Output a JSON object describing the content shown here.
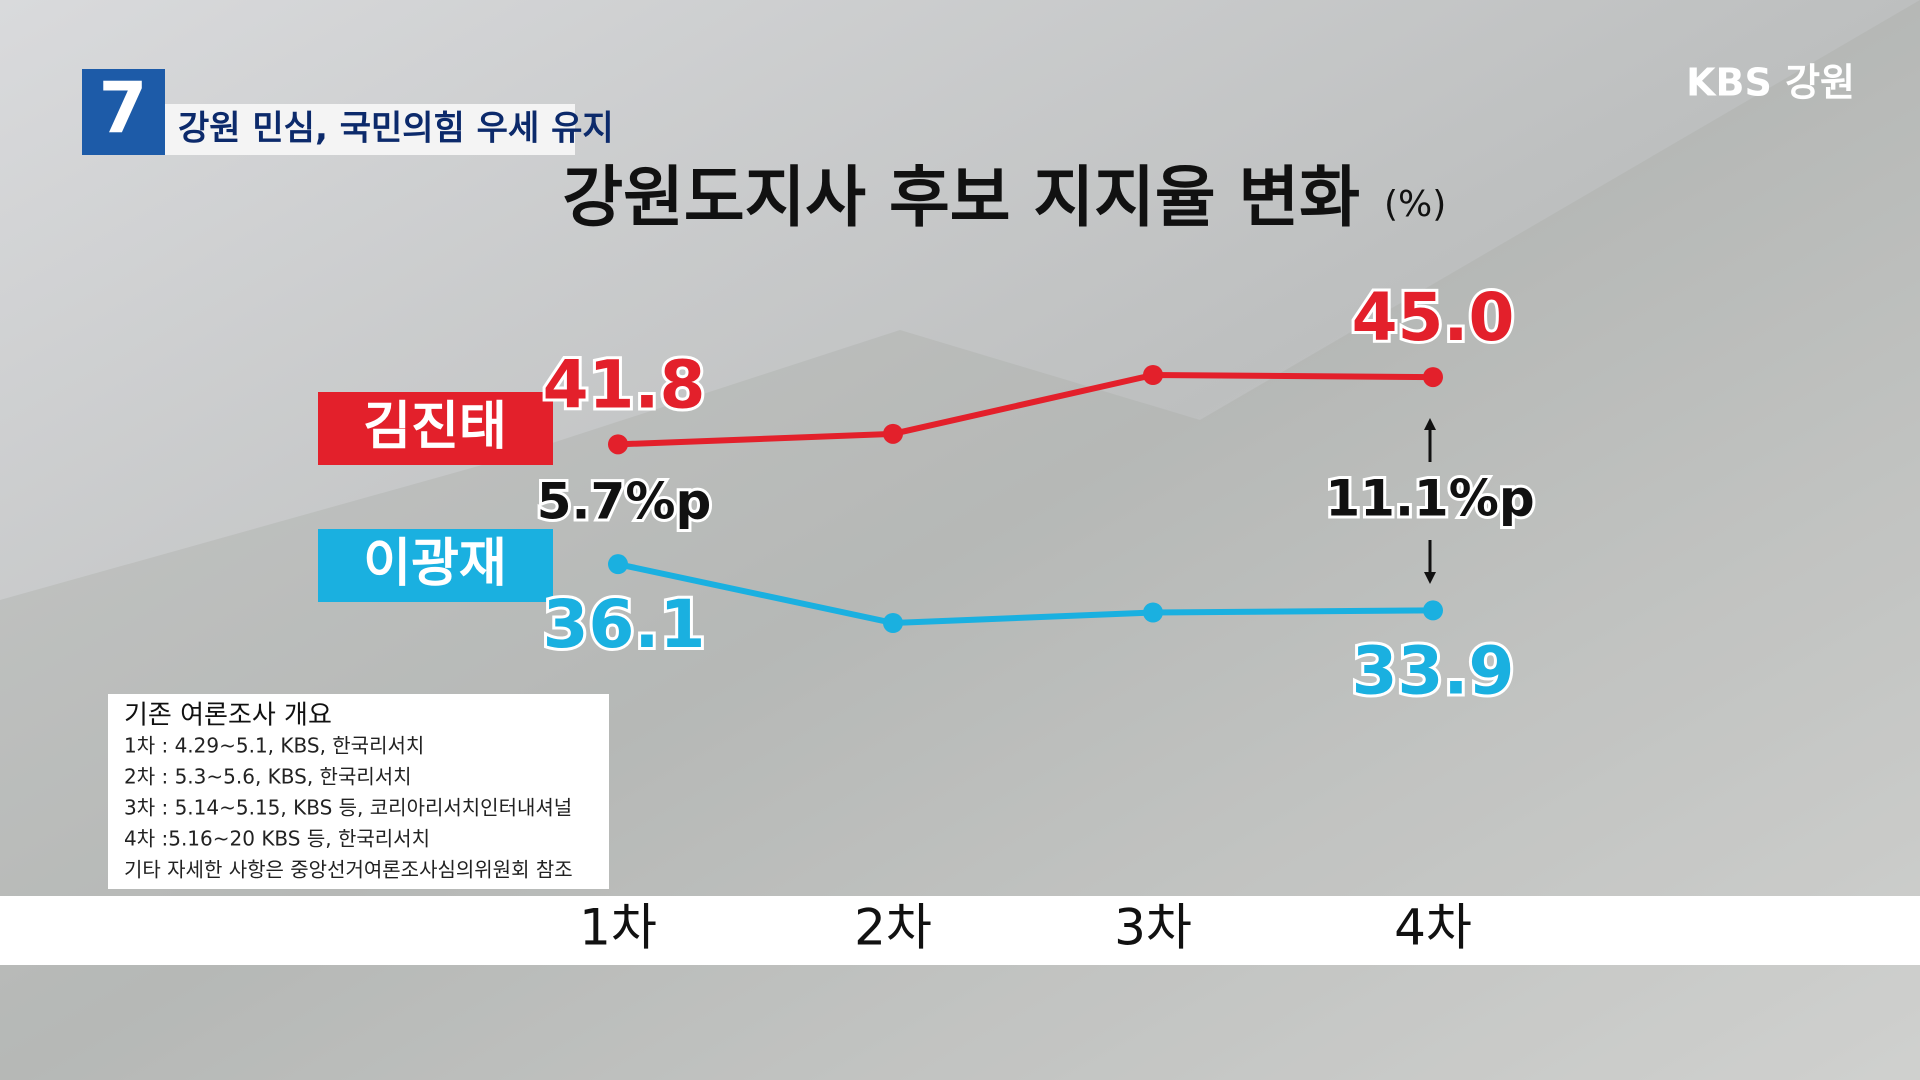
{
  "chart_data": {
    "type": "line",
    "badge": "7",
    "headline": "강원 민심, 국민의힘 우세 유지",
    "logo": "KBS 강원",
    "title": "강원도지사 후보 지지율 변화",
    "unit": "(%)",
    "categories": [
      "1차",
      "2차",
      "3차",
      "4차"
    ],
    "series": [
      {
        "name": "김진태",
        "color": "#e3202b",
        "values": [
          41.8,
          42.3,
          45.1,
          45.0
        ],
        "value_labels": [
          "41.8",
          null,
          null,
          "45.0"
        ]
      },
      {
        "name": "이광재",
        "color": "#1ab0e0",
        "values": [
          36.1,
          33.3,
          33.8,
          33.9
        ],
        "value_labels": [
          "36.1",
          null,
          null,
          "33.9"
        ]
      }
    ],
    "annotations": [
      "5.7%p",
      "11.1%p"
    ],
    "note": {
      "title": "기존 여론조사 개요",
      "lines": [
        "1차 : 4.29~5.1, KBS, 한국리서치",
        "2차 : 5.3~5.6, KBS, 한국리서치",
        "3차 : 5.14~5.15, KBS 등, 코리아리서치인터내셔널",
        "4차 :5.16~20 KBS 등, 한국리서치",
        "기타 자세한 사항은 중앙선거여론조사심의위원회 참조"
      ]
    }
  }
}
